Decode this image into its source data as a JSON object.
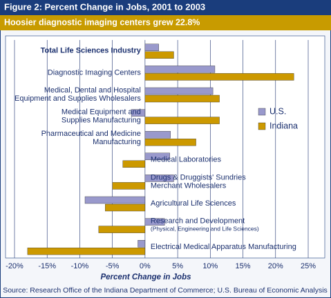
{
  "chart_data": {
    "type": "hbar",
    "title": "Figure 2: Percent Change in Jobs, 2001 to 2003",
    "subtitle": "Hoosier diagnostic imaging centers grew 22.8%",
    "categories": [
      "Total Life Sciences Industry",
      "Diagnostic Imaging Centers",
      "Medical, Dental and Hospital\nEquipment and Supplies Wholesalers",
      "Medical Equipment and\nSupplies Manufacturing",
      "Pharmaceutical and Medicine\nManufacturing",
      "Medical Laboratories",
      "Drugs & Druggists' Sundries\nMerchant Wholesalers",
      "Agricultural Life Sciences",
      "Research and Development\n(Physical, Engineering and Life Sciences)",
      "Electrical Medical Apparatus Manufacturing"
    ],
    "series": [
      {
        "name": "U.S.",
        "color": "#9999cc",
        "values": [
          2.1,
          10.7,
          10.4,
          -2.1,
          3.9,
          3.8,
          4.4,
          -9.2,
          3.0,
          -1.1
        ]
      },
      {
        "name": "Indiana",
        "color": "#cc9900",
        "values": [
          4.4,
          22.8,
          11.4,
          11.4,
          7.8,
          -3.4,
          -5.0,
          -6.1,
          -7.1,
          -18.0
        ]
      }
    ],
    "xlim": [
      -20,
      25
    ],
    "xticks": [
      {
        "value": -20,
        "label": "-20%"
      },
      {
        "value": -15,
        "label": "-15%"
      },
      {
        "value": -10,
        "label": "-10%"
      },
      {
        "value": -5,
        "label": "-5%"
      },
      {
        "value": 0,
        "label": "0%"
      },
      {
        "value": 5,
        "label": "5%"
      },
      {
        "value": 10,
        "label": "10%"
      },
      {
        "value": 15,
        "label": "15%"
      },
      {
        "value": 20,
        "label": "20%"
      },
      {
        "value": 25,
        "label": "25%"
      }
    ],
    "xlabel": "Percent Change in Jobs",
    "grid": true,
    "legend": "right",
    "source": "Source: Research Office of the Indiana Department of Commerce; U.S. Bureau of Economic Analysis"
  }
}
